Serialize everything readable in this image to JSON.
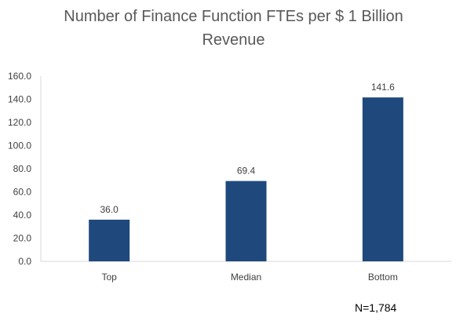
{
  "chart_data": {
    "type": "bar",
    "title_lines": [
      "Number of Finance Function FTEs per $ 1 Billion",
      "Revenue"
    ],
    "categories": [
      "Top",
      "Median",
      "Bottom"
    ],
    "values": [
      36.0,
      69.4,
      141.6
    ],
    "data_labels": [
      "36.0",
      "69.4",
      "141.6"
    ],
    "ylim": [
      0,
      160
    ],
    "yticks": [
      "0.0",
      "20.0",
      "40.0",
      "60.0",
      "80.0",
      "100.0",
      "120.0",
      "140.0",
      "160.0"
    ],
    "xlabel": "",
    "ylabel": "",
    "grid": false,
    "bar_color": "#1F497D",
    "axis_color": "#D9D9D9"
  },
  "footnote": "N=1,784"
}
